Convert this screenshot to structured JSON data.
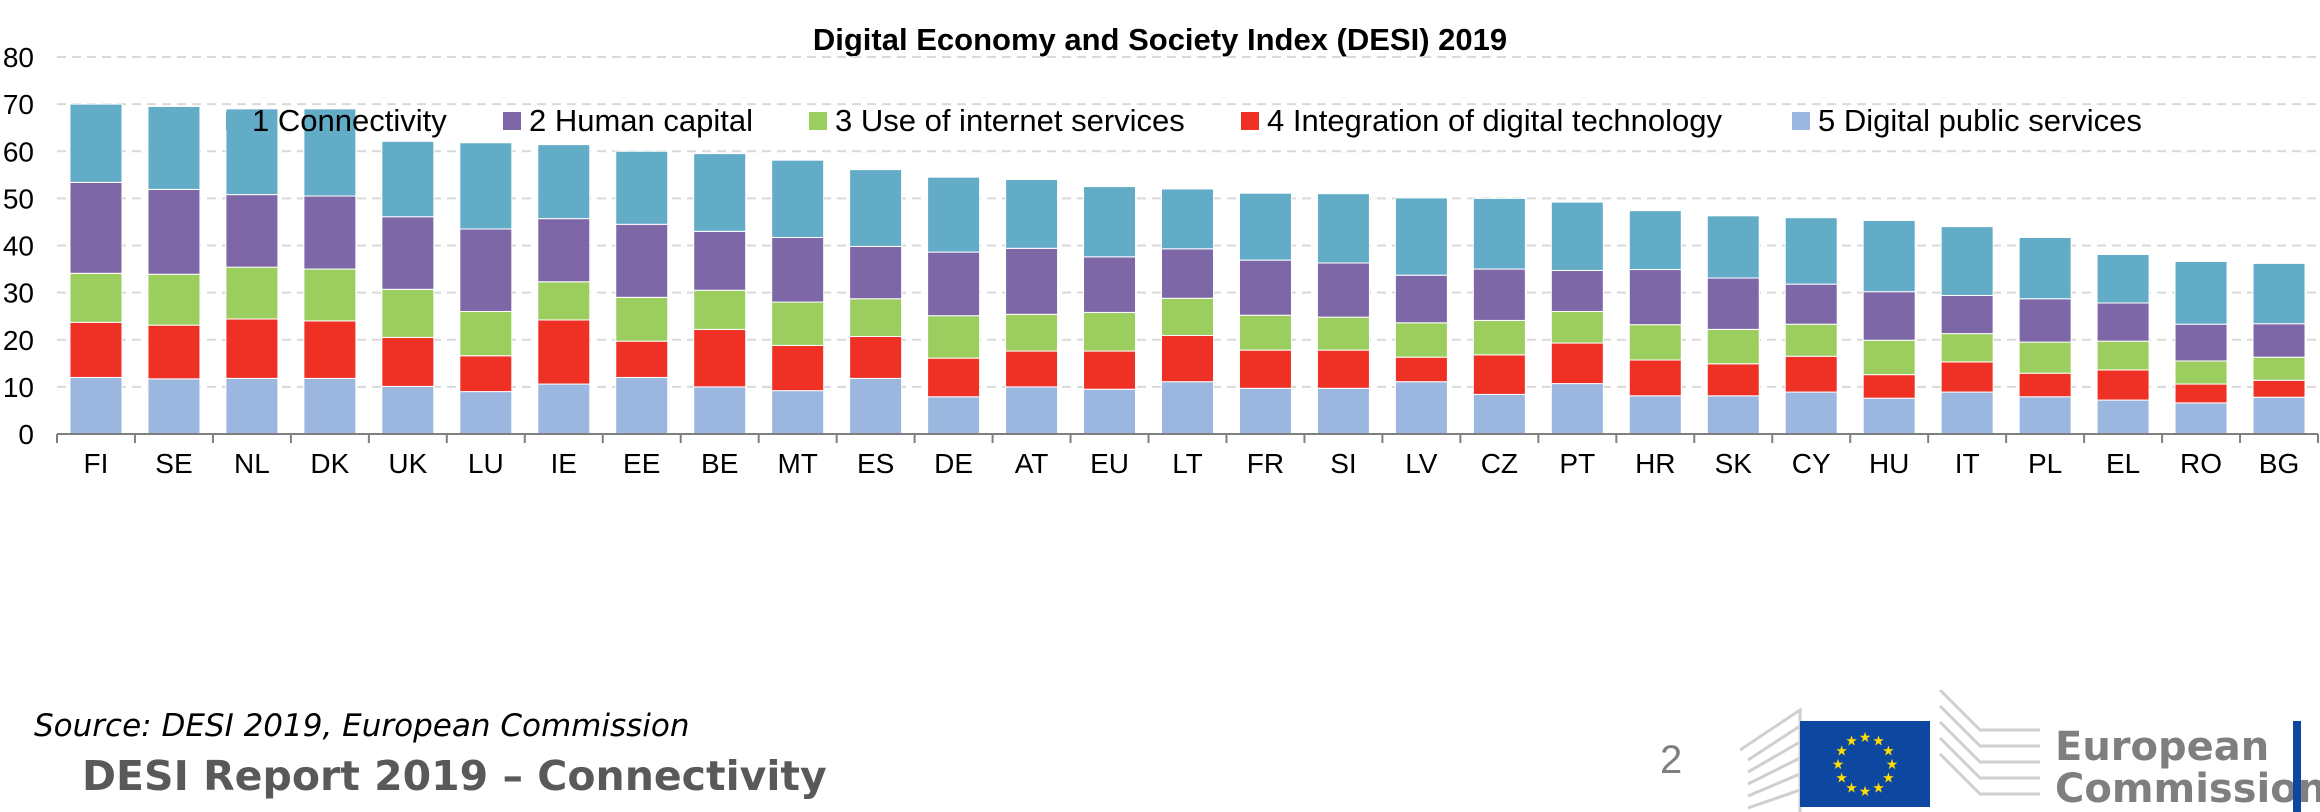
{
  "title": "Digital Economy and Society Index (DESI) 2019",
  "source": "Source: DESI 2019, European Commission",
  "report_title": "DESI Report 2019 – Connectivity",
  "page_number": "2",
  "logo": {
    "line1": "European",
    "line2": "Commission",
    "icon": "eu-flag-icon"
  },
  "chart_data": {
    "type": "bar",
    "stacked": true,
    "categories": [
      "FI",
      "SE",
      "NL",
      "DK",
      "UK",
      "LU",
      "IE",
      "EE",
      "BE",
      "MT",
      "ES",
      "DE",
      "AT",
      "EU",
      "LT",
      "FR",
      "SI",
      "LV",
      "CZ",
      "PT",
      "HR",
      "SK",
      "CY",
      "HU",
      "IT",
      "PL",
      "EL",
      "RO",
      "BG"
    ],
    "series": [
      {
        "name": "5 Digital public services",
        "color": "#9bb7e0",
        "values": [
          12.0,
          11.7,
          11.8,
          11.8,
          10.1,
          9.0,
          10.6,
          12.0,
          10.0,
          9.2,
          11.8,
          7.9,
          10.0,
          9.5,
          11.1,
          9.7,
          9.7,
          11.1,
          8.4,
          10.7,
          8.1,
          8.1,
          8.9,
          7.6,
          8.9,
          7.9,
          7.2,
          6.6,
          7.8
        ]
      },
      {
        "name": "4 Integration of digital technology",
        "color": "#ee3124",
        "values": [
          11.7,
          11.4,
          12.6,
          12.2,
          10.4,
          7.6,
          13.6,
          7.7,
          12.2,
          9.6,
          8.9,
          8.2,
          7.6,
          8.1,
          9.8,
          8.1,
          8.1,
          5.2,
          8.4,
          8.6,
          7.6,
          6.8,
          7.6,
          5.0,
          6.4,
          5.0,
          6.4,
          4.0,
          3.6
        ]
      },
      {
        "name": "3 Use of internet services",
        "color": "#9bce5e",
        "values": [
          10.4,
          10.8,
          11.0,
          11.0,
          10.2,
          9.4,
          8.1,
          9.3,
          8.3,
          9.2,
          8.0,
          9.0,
          7.8,
          8.2,
          7.9,
          7.4,
          7.0,
          7.3,
          7.3,
          6.7,
          7.5,
          7.3,
          6.8,
          7.3,
          6.0,
          6.6,
          6.1,
          4.9,
          4.9
        ]
      },
      {
        "name": "2 Human capital",
        "color": "#7e67a6",
        "values": [
          19.3,
          18.0,
          15.4,
          15.5,
          15.4,
          17.5,
          13.4,
          15.5,
          12.5,
          13.7,
          11.1,
          13.5,
          14.0,
          11.8,
          10.5,
          11.7,
          11.5,
          10.1,
          10.9,
          8.7,
          11.7,
          10.9,
          8.5,
          10.3,
          8.1,
          9.2,
          8.1,
          7.8,
          7.1
        ]
      },
      {
        "name": "1 Connectivity",
        "color": "#63acc7",
        "values": [
          16.6,
          17.6,
          18.2,
          18.5,
          16.0,
          18.3,
          15.7,
          15.5,
          16.5,
          16.4,
          16.3,
          15.9,
          14.6,
          14.9,
          12.7,
          14.2,
          14.7,
          16.4,
          15.0,
          14.5,
          12.5,
          13.2,
          14.1,
          15.1,
          14.6,
          13.0,
          10.3,
          13.3,
          12.8
        ]
      }
    ],
    "legend_order": [
      "1 Connectivity",
      "2 Human capital",
      "3 Use of internet services",
      "4 Integration of digital technology",
      "5 Digital public services"
    ],
    "ylim": [
      0,
      80
    ],
    "yticks": [
      0,
      10,
      20,
      30,
      40,
      50,
      60,
      70,
      80
    ],
    "grid": true,
    "legend_position": "top"
  }
}
